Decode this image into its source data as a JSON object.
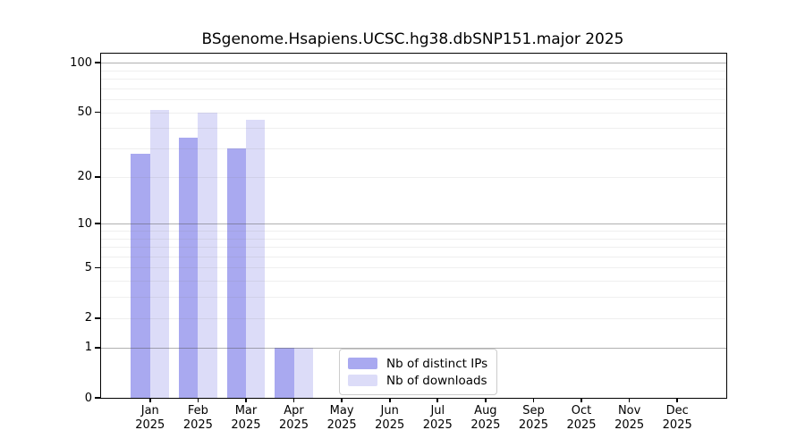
{
  "title": "BSgenome.Hsapiens.UCSC.hg38.dbSNP151.major 2025",
  "colors": {
    "distinct_ips": "#a9a9f0",
    "downloads": "#dcdcf8",
    "grid_major": "rgba(80,80,80,0.45)",
    "grid_minor": "rgba(120,120,120,0.12)",
    "axis": "#000000"
  },
  "legend": {
    "items": [
      {
        "label": "Nb of distinct IPs",
        "color": "#a9a9f0"
      },
      {
        "label": "Nb of downloads",
        "color": "#dcdcf8"
      }
    ]
  },
  "chart_data": {
    "type": "bar",
    "title": "BSgenome.Hsapiens.UCSC.hg38.dbSNP151.major 2025",
    "categories": [
      "Jan",
      "Feb",
      "Mar",
      "Apr",
      "May",
      "Jun",
      "Jul",
      "Aug",
      "Sep",
      "Oct",
      "Nov",
      "Dec"
    ],
    "year_label": "2025",
    "series": [
      {
        "name": "Nb of distinct IPs",
        "color": "#a9a9f0",
        "values": [
          28,
          35,
          30,
          1,
          0,
          0,
          0,
          0,
          0,
          0,
          0,
          0
        ]
      },
      {
        "name": "Nb of downloads",
        "color": "#dcdcf8",
        "values": [
          52,
          50,
          45,
          1,
          0,
          0,
          0,
          0,
          0,
          0,
          0,
          0
        ]
      }
    ],
    "xlabel": "",
    "ylabel": "",
    "yscale": "log10(1+y)",
    "ylim": [
      0,
      114
    ],
    "yticks": [
      0,
      1,
      2,
      5,
      10,
      20,
      50,
      100
    ],
    "major_gridlines": [
      1,
      10,
      100
    ],
    "minor_gridlines": [
      2,
      3,
      4,
      5,
      6,
      7,
      8,
      9,
      20,
      30,
      40,
      50,
      60,
      70,
      80,
      90
    ],
    "grid": "horizontal",
    "legend_position": "lower center"
  }
}
